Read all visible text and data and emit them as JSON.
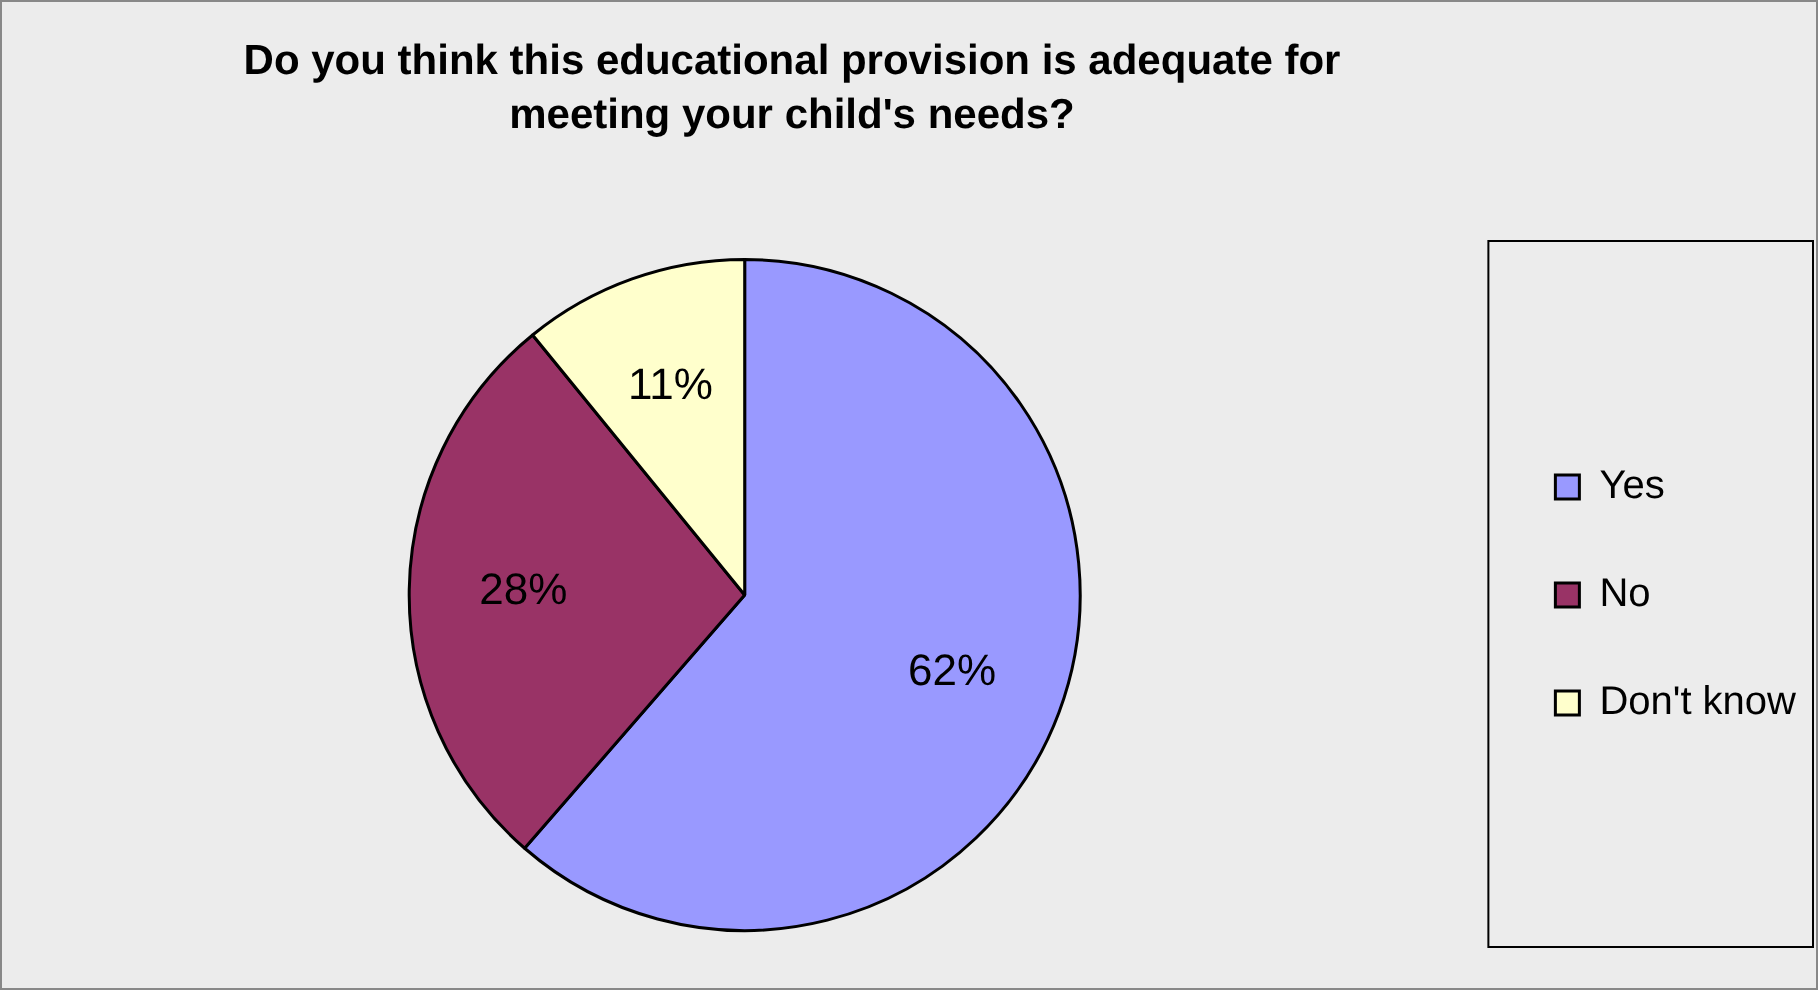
{
  "chart_data": {
    "type": "pie",
    "title": "Do you think this educational provision is adequate for meeting your child's needs?",
    "categories": [
      "Yes",
      "No",
      "Don't know"
    ],
    "values": [
      62,
      28,
      11
    ],
    "colors": [
      "#9999ff",
      "#993366",
      "#ffffcc"
    ],
    "value_labels": [
      "62%",
      "28%",
      "11%"
    ],
    "legend": "right"
  }
}
